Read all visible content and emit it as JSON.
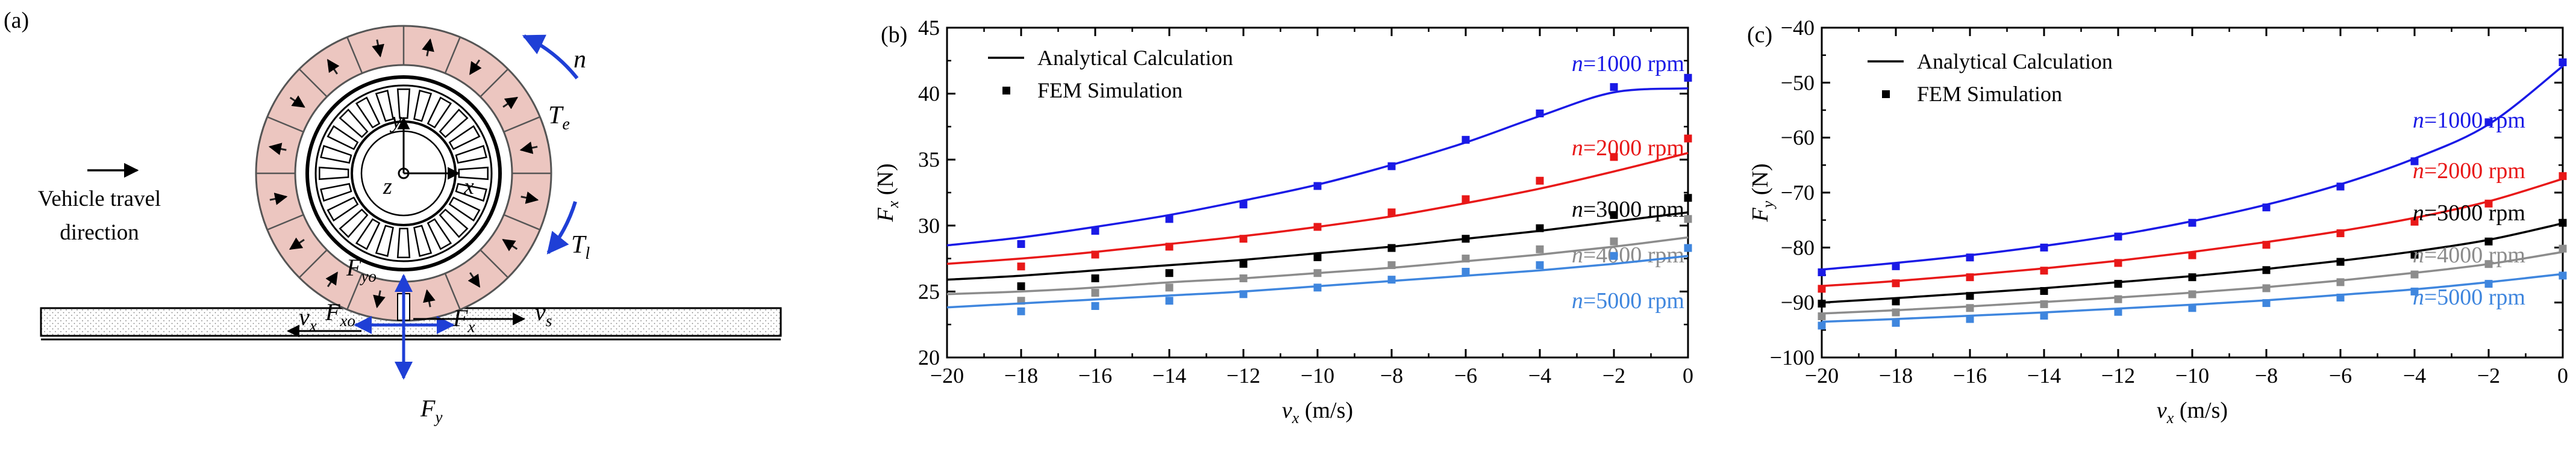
{
  "panel_a": {
    "label": "(a)",
    "travel_text_line1": "Vehicle travel",
    "travel_text_line2": "direction",
    "labels": {
      "n": "n",
      "Te": "T",
      "Te_sub": "e",
      "Tl": "T",
      "Tl_sub": "l",
      "Fyo": "F",
      "Fyo_sub": "yo",
      "Fxo": "F",
      "Fxo_sub": "xo",
      "vs": "v",
      "vs_sub": "s",
      "vx": "v",
      "vx_sub": "x",
      "Fx": "F",
      "Fx_sub": "x",
      "Fy": "F",
      "Fy_sub": "y",
      "axis_y": "y",
      "axis_x": "x",
      "axis_z": "z"
    },
    "colors": {
      "magnet": "#ecc6c0",
      "force": "#1f3fd6",
      "black": "#000000"
    }
  },
  "chart_data": [
    {
      "type": "line",
      "panel_label": "(b)",
      "title": "",
      "xlabel": "v",
      "xlabel_sub": "x",
      "xlabel_unit": " (m/s)",
      "ylabel": "F",
      "ylabel_sub": "x",
      "ylabel_unit": " (N)",
      "xlim": [
        -20,
        0
      ],
      "ylim": [
        20,
        45
      ],
      "xticks": [
        -20,
        -18,
        -16,
        -14,
        -12,
        -10,
        -8,
        -6,
        -4,
        -2,
        0
      ],
      "yticks": [
        20,
        25,
        30,
        35,
        40,
        45
      ],
      "legend": {
        "position": "top-left",
        "line_label": "Analytical Calculation",
        "marker_label": "FEM Simulation"
      },
      "x": [
        -20,
        -18,
        -16,
        -14,
        -12,
        -10,
        -8,
        -6,
        -4,
        -2,
        0
      ],
      "series": [
        {
          "name_prefix": "n",
          "name": "=1000 rpm",
          "color": "#1a1ae6",
          "analytical": [
            28.5,
            29.1,
            29.9,
            30.8,
            31.9,
            33.1,
            34.6,
            36.3,
            38.3,
            40.1,
            40.4
          ],
          "fem": [
            null,
            28.6,
            29.6,
            30.5,
            31.6,
            33.0,
            34.5,
            36.5,
            38.5,
            40.5,
            41.2
          ]
        },
        {
          "name_prefix": "n",
          "name": "=2000 rpm",
          "color": "#e81818",
          "analytical": [
            27.1,
            27.5,
            28.0,
            28.6,
            29.2,
            29.9,
            30.7,
            31.7,
            32.8,
            34.1,
            35.5
          ],
          "fem": [
            null,
            26.9,
            27.8,
            28.4,
            29.0,
            29.9,
            31.0,
            32.0,
            33.4,
            35.2,
            36.6
          ]
        },
        {
          "name_prefix": "n",
          "name": "=3000 rpm",
          "color": "#000000",
          "analytical": [
            25.9,
            26.2,
            26.6,
            27.0,
            27.4,
            27.9,
            28.4,
            29.0,
            29.6,
            30.3,
            31.0
          ],
          "fem": [
            null,
            25.4,
            26.0,
            26.4,
            27.1,
            27.6,
            28.3,
            29.0,
            29.8,
            30.8,
            32.1
          ]
        },
        {
          "name_prefix": "n",
          "name": "=4000 rpm",
          "color": "#8c8c8c",
          "analytical": [
            24.8,
            25.0,
            25.3,
            25.7,
            26.0,
            26.4,
            26.8,
            27.3,
            27.8,
            28.4,
            29.1
          ],
          "fem": [
            null,
            24.3,
            24.9,
            25.3,
            26.0,
            26.4,
            27.0,
            27.5,
            28.2,
            28.8,
            30.5
          ]
        },
        {
          "name_prefix": "n",
          "name": "=5000 rpm",
          "color": "#3f86de",
          "analytical": [
            23.8,
            24.1,
            24.4,
            24.7,
            25.0,
            25.4,
            25.8,
            26.2,
            26.6,
            27.1,
            27.7
          ],
          "fem": [
            null,
            23.5,
            23.9,
            24.3,
            24.8,
            25.3,
            25.9,
            26.5,
            27.0,
            27.7,
            28.3
          ]
        }
      ]
    },
    {
      "type": "line",
      "panel_label": "(c)",
      "title": "",
      "xlabel": "v",
      "xlabel_sub": "x",
      "xlabel_unit": " (m/s)",
      "ylabel": "F",
      "ylabel_sub": "y",
      "ylabel_unit": " (N)",
      "xlim": [
        -20,
        0
      ],
      "ylim": [
        -100,
        -40
      ],
      "xticks": [
        -20,
        -18,
        -16,
        -14,
        -12,
        -10,
        -8,
        -6,
        -4,
        -2,
        0
      ],
      "yticks": [
        -100,
        -90,
        -80,
        -70,
        -60,
        -50,
        -40
      ],
      "legend": {
        "position": "top-left",
        "line_label": "Analytical Calculation",
        "marker_label": "FEM Simulation"
      },
      "x": [
        -20,
        -18,
        -16,
        -14,
        -12,
        -10,
        -8,
        -6,
        -4,
        -2,
        0
      ],
      "series": [
        {
          "name_prefix": "n",
          "name": "=1000 rpm",
          "color": "#1a1ae6",
          "analytical": [
            -84.0,
            -82.8,
            -81.4,
            -79.7,
            -77.7,
            -75.2,
            -72.2,
            -68.5,
            -63.8,
            -57.6,
            -47.0
          ],
          "fem": [
            -84.5,
            -83.4,
            -81.8,
            -80.0,
            -78.0,
            -75.5,
            -72.7,
            -68.9,
            -64.3,
            -57.2,
            -46.3
          ]
        },
        {
          "name_prefix": "n",
          "name": "=2000 rpm",
          "color": "#e81818",
          "analytical": [
            -87.0,
            -86.1,
            -85.0,
            -83.8,
            -82.4,
            -80.8,
            -79.0,
            -77.0,
            -74.6,
            -71.6,
            -67.5
          ],
          "fem": [
            -87.5,
            -86.5,
            -85.4,
            -84.2,
            -82.8,
            -81.4,
            -79.5,
            -77.4,
            -75.3,
            -72.0,
            -67.0
          ]
        },
        {
          "name_prefix": "n",
          "name": "=3000 rpm",
          "color": "#000000",
          "analytical": [
            -90.0,
            -89.2,
            -88.3,
            -87.4,
            -86.3,
            -85.2,
            -83.9,
            -82.4,
            -80.7,
            -78.6,
            -75.6
          ],
          "fem": [
            -90.2,
            -89.8,
            -88.8,
            -87.9,
            -86.6,
            -85.4,
            -84.1,
            -82.6,
            -81.3,
            -78.9,
            -75.5
          ]
        },
        {
          "name_prefix": "n",
          "name": "=4000 rpm",
          "color": "#8c8c8c",
          "analytical": [
            -92.0,
            -91.4,
            -90.7,
            -89.9,
            -89.1,
            -88.2,
            -87.2,
            -86.0,
            -84.6,
            -83.0,
            -80.8
          ],
          "fem": [
            -92.5,
            -91.8,
            -91.0,
            -90.3,
            -89.4,
            -88.5,
            -87.4,
            -86.3,
            -84.9,
            -83.0,
            -80.2
          ]
        },
        {
          "name_prefix": "n",
          "name": "=5000 rpm",
          "color": "#3f86de",
          "analytical": [
            -93.5,
            -93.0,
            -92.4,
            -91.8,
            -91.1,
            -90.4,
            -89.6,
            -88.6,
            -87.6,
            -86.3,
            -84.8
          ],
          "fem": [
            -94.2,
            -93.7,
            -93.0,
            -92.4,
            -91.7,
            -91.0,
            -90.1,
            -89.1,
            -88.0,
            -86.6,
            -85.1
          ]
        }
      ]
    }
  ]
}
